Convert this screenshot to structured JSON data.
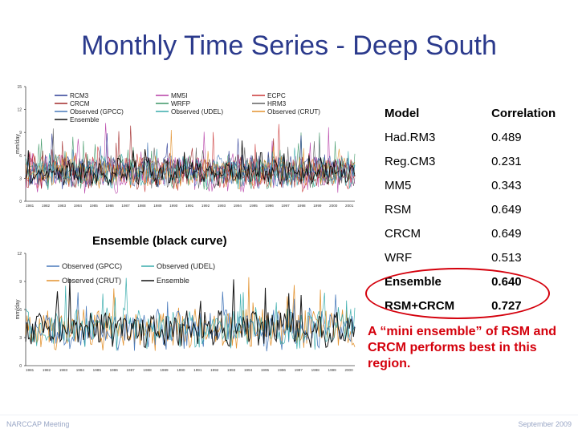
{
  "slide": {
    "title": "Monthly Time Series - Deep South",
    "ensemble_label": "Ensemble (black curve)",
    "note": "A “mini ensemble” of RSM and CRCM performs best in this region.",
    "footer_left": "NARCCAP Meeting",
    "footer_right": "September 2009"
  },
  "table": {
    "headers": [
      "Model",
      "Correlation"
    ],
    "rows": [
      {
        "model": "Had.RM3",
        "corr": "0.489"
      },
      {
        "model": "Reg.CM3",
        "corr": "0.231"
      },
      {
        "model": "MM5",
        "corr": "0.343"
      },
      {
        "model": "RSM",
        "corr": "0.649"
      },
      {
        "model": "CRCM",
        "corr": "0.649"
      },
      {
        "model": "WRF",
        "corr": "0.513"
      },
      {
        "model": "Ensemble",
        "corr": "0.640"
      },
      {
        "model": "RSM+CRCM",
        "corr": "0.727"
      }
    ],
    "highlight_color": "#d4000c"
  },
  "chart_data": [
    {
      "type": "line",
      "ylabel": "mm/day",
      "ylim": [
        0,
        15
      ],
      "yticks": [
        0,
        3,
        6,
        9,
        12,
        15
      ],
      "x_start": 1981,
      "x_end": 2001,
      "x_ticks": [
        "1981",
        "1982",
        "1983",
        "1984",
        "1985",
        "1986",
        "1987",
        "1988",
        "1989",
        "1990",
        "1991",
        "1992",
        "1993",
        "1994",
        "1995",
        "1996",
        "1997",
        "1998",
        "1999",
        "2000",
        "2001"
      ],
      "legend": [
        {
          "name": "RCM3",
          "color": "#1f2f8f"
        },
        {
          "name": "CRCM",
          "color": "#9b1b1b"
        },
        {
          "name": "Observed (GPCC)",
          "color": "#3a6fb5"
        },
        {
          "name": "Ensemble",
          "color": "#000000"
        },
        {
          "name": "MM5I",
          "color": "#b02fa0"
        },
        {
          "name": "WRFP",
          "color": "#2f8f5a"
        },
        {
          "name": "Observed (UDEL)",
          "color": "#2aa6a6"
        },
        {
          "name": "ECPC",
          "color": "#c62828"
        },
        {
          "name": "HRM3",
          "color": "#555555"
        },
        {
          "name": "Observed (CRUT)",
          "color": "#e08a1e"
        }
      ]
    },
    {
      "type": "line",
      "ylabel": "mm/day",
      "ylim": [
        0,
        12
      ],
      "yticks": [
        0,
        3,
        6,
        9,
        12
      ],
      "x_start": 1981,
      "x_end": 2000,
      "x_ticks": [
        "1981",
        "1982",
        "1983",
        "1984",
        "1985",
        "1986",
        "1987",
        "1988",
        "1989",
        "1990",
        "1991",
        "1992",
        "1993",
        "1994",
        "1995",
        "1996",
        "1997",
        "1998",
        "1999",
        "2000"
      ],
      "legend": [
        {
          "name": "Observed (GPCC)",
          "color": "#3a6fb5"
        },
        {
          "name": "Observed (UDEL)",
          "color": "#2aa6a6"
        },
        {
          "name": "Observed (CRUT)",
          "color": "#e08a1e"
        },
        {
          "name": "Ensemble",
          "color": "#000000"
        }
      ]
    }
  ]
}
